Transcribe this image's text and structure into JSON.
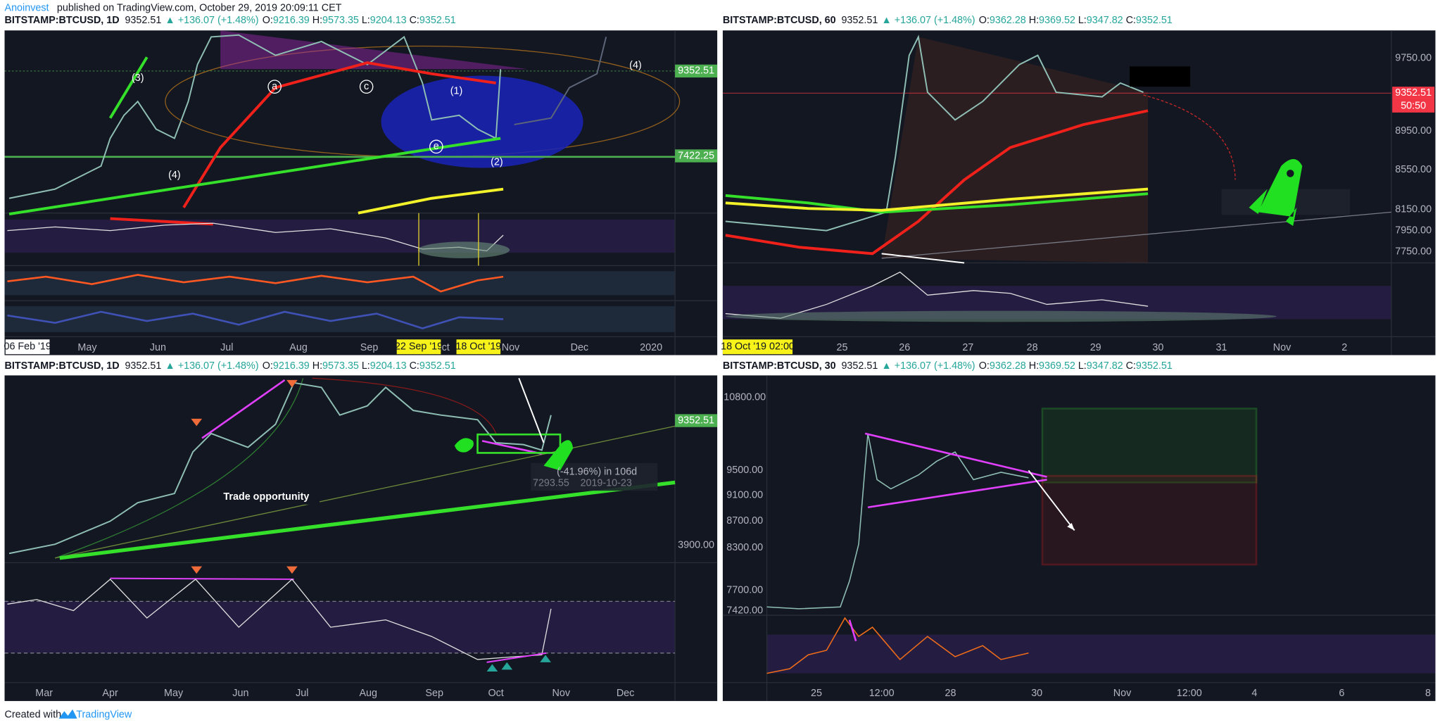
{
  "header": {
    "author": "Anoinvest",
    "text": "published on TradingView.com, October 29, 2019 20:09:11 CET"
  },
  "panels": [
    {
      "header": {
        "symbol": "BITSTAMP:BTCUSD, 1D",
        "last": "9352.51",
        "change": "▲ +136.07 (+1.48%)",
        "ohlc": [
          {
            "label": "O:",
            "value": "9216.39"
          },
          {
            "label": "H:",
            "value": "9573.35"
          },
          {
            "label": "L:",
            "value": "9204.13"
          },
          {
            "label": "C:",
            "value": "9352.51"
          }
        ]
      },
      "price_scale": [
        {
          "text": "9352.51",
          "color": "#4caf50"
        },
        {
          "text": "7422.25",
          "color": "#4caf50"
        }
      ],
      "time_scale": [
        "May",
        "Jun",
        "Jul",
        "Aug",
        "Sep",
        "Oct",
        "Nov",
        "Dec",
        "2020"
      ],
      "date_tags": [
        "06 Feb '19",
        "22 Sep '19",
        "18 Oct '19"
      ],
      "annotations": [
        "(3)",
        "(4)",
        "(1)",
        "(2)",
        "(4)",
        "a",
        "c",
        "e"
      ]
    },
    {
      "header": {
        "symbol": "BITSTAMP:BTCUSD, 60",
        "last": "9352.51",
        "change": "▲ +136.07 (+1.48%)",
        "ohlc": [
          {
            "label": "O:",
            "value": "9362.28"
          },
          {
            "label": "H:",
            "value": "9369.52"
          },
          {
            "label": "L:",
            "value": "9347.82"
          },
          {
            "label": "C:",
            "value": "9352.51"
          }
        ]
      },
      "price_scale": [
        {
          "text": "9750.00"
        },
        {
          "text": "9352.51",
          "color": "#f23645"
        },
        {
          "text": "50:50",
          "color": "#f23645"
        },
        {
          "text": "8950.00"
        },
        {
          "text": "8550.00"
        },
        {
          "text": "8150.00"
        },
        {
          "text": "7950.00"
        },
        {
          "text": "7750.00"
        }
      ],
      "time_scale": [
        "25",
        "26",
        "27",
        "28",
        "29",
        "30",
        "31",
        "Nov",
        "2"
      ],
      "date_tags": [
        "18 Oct '19  02:00"
      ],
      "annotations": []
    },
    {
      "header": {
        "symbol": "BITSTAMP:BTCUSD, 1D",
        "last": "9352.51",
        "change": "▲ +136.07 (+1.48%)",
        "ohlc": [
          {
            "label": "O:",
            "value": "9216.39"
          },
          {
            "label": "H:",
            "value": "9573.35"
          },
          {
            "label": "L:",
            "value": "9204.13"
          },
          {
            "label": "C:",
            "value": "9352.51"
          }
        ]
      },
      "price_scale": [
        {
          "text": "9352.51",
          "color": "#4caf50"
        },
        {
          "text": "3900.00"
        }
      ],
      "time_scale": [
        "Mar",
        "Apr",
        "May",
        "Jun",
        "Jul",
        "Aug",
        "Sep",
        "Oct",
        "Nov",
        "Dec"
      ],
      "date_tags": [],
      "annotations": [
        "Trade opportunity",
        "(-41.96%) in 106d",
        "7293.55",
        "2019-10-23"
      ]
    },
    {
      "header": {
        "symbol": "BITSTAMP:BTCUSD, 30",
        "last": "9352.51",
        "change": "▲ +136.07 (+1.48%)",
        "ohlc": [
          {
            "label": "O:",
            "value": "9362.28"
          },
          {
            "label": "H:",
            "value": "9369.52"
          },
          {
            "label": "L:",
            "value": "9347.82"
          },
          {
            "label": "C:",
            "value": "9352.51"
          }
        ]
      },
      "price_scale": [
        {
          "text": "10800.00"
        },
        {
          "text": "9500.00"
        },
        {
          "text": "9100.00"
        },
        {
          "text": "8700.00"
        },
        {
          "text": "8300.00"
        },
        {
          "text": "7700.00"
        },
        {
          "text": "7420.00"
        }
      ],
      "time_scale": [
        "25",
        "12:00",
        "28",
        "30",
        "Nov",
        "12:00",
        "4",
        "6",
        "8"
      ],
      "date_tags": [],
      "annotations": []
    }
  ],
  "footer": {
    "text": "Created with",
    "brand": "TradingView"
  }
}
